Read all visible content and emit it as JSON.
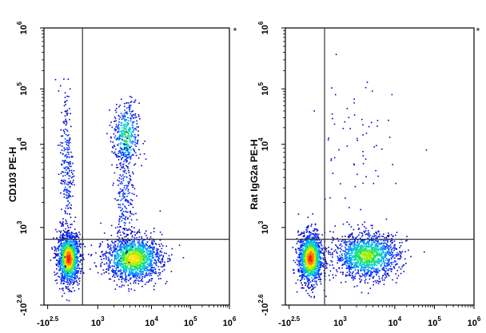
{
  "chart_data": [
    {
      "type": "scatter",
      "subtype": "flow-cytometry-density-dot-plot",
      "ylabel": "CD103 PE-H",
      "xlabel": "",
      "corner_mark": "*",
      "axis_scale": "biexponential",
      "x_ticks": [
        {
          "base": "-10",
          "exp": "2.5"
        },
        {
          "base": "10",
          "exp": "3"
        },
        {
          "base": "10",
          "exp": "4"
        },
        {
          "base": "10",
          "exp": "5"
        },
        {
          "base": "10",
          "exp": "6"
        }
      ],
      "y_ticks": [
        {
          "base": "-10",
          "exp": "2.6"
        },
        {
          "base": "10",
          "exp": "3"
        },
        {
          "base": "10",
          "exp": "4"
        },
        {
          "base": "10",
          "exp": "5"
        },
        {
          "base": "10",
          "exp": "6"
        }
      ],
      "quadrant_gate": {
        "x": 600,
        "y": 800
      },
      "populations": [
        {
          "id": "cd103-neg-left",
          "center_x": 100,
          "center_y": 20,
          "density": "very high"
        },
        {
          "id": "cd103-neg-right",
          "center_x": 4500,
          "center_y": 30,
          "density": "high"
        },
        {
          "id": "cd103-pos",
          "center_x": 3000,
          "center_y": 12000,
          "density": "medium"
        },
        {
          "id": "left-streak",
          "center_x": 120,
          "center_y": 4000,
          "density": "low"
        },
        {
          "id": "middle-streak",
          "center_x": 3200,
          "center_y": 2500,
          "density": "low"
        }
      ]
    },
    {
      "type": "scatter",
      "subtype": "flow-cytometry-density-dot-plot",
      "ylabel": "Rat IgG2a PE-H",
      "xlabel": "",
      "corner_mark": "*",
      "axis_scale": "biexponential",
      "x_ticks": [
        {
          "base": "-10",
          "exp": "2.5"
        },
        {
          "base": "10",
          "exp": "3"
        },
        {
          "base": "10",
          "exp": "4"
        },
        {
          "base": "10",
          "exp": "5"
        },
        {
          "base": "10",
          "exp": "6"
        }
      ],
      "y_ticks": [
        {
          "base": "-10",
          "exp": "2.6"
        },
        {
          "base": "10",
          "exp": "3"
        },
        {
          "base": "10",
          "exp": "4"
        },
        {
          "base": "10",
          "exp": "5"
        },
        {
          "base": "10",
          "exp": "6"
        }
      ],
      "quadrant_gate": {
        "x": 600,
        "y": 800
      },
      "populations": [
        {
          "id": "isotype-left",
          "center_x": 100,
          "center_y": 20,
          "density": "very high"
        },
        {
          "id": "isotype-right",
          "center_x": 3500,
          "center_y": 40,
          "density": "high"
        },
        {
          "id": "isotype-sparse",
          "center_x": 2000,
          "center_y": 3000,
          "density": "very low"
        }
      ]
    }
  ]
}
